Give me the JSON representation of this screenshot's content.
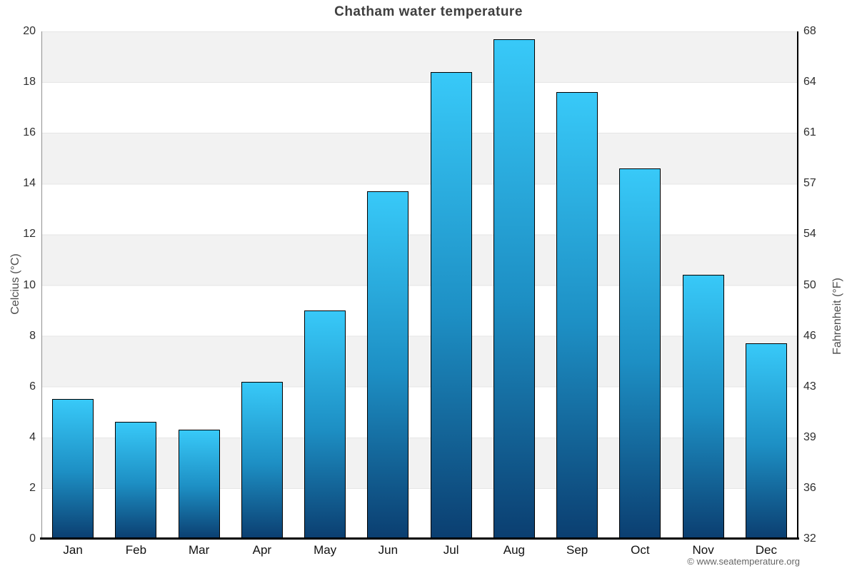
{
  "page": {
    "watermark": "© www.seatemperature.org"
  },
  "chart_data": {
    "type": "bar",
    "title": "Chatham water temperature",
    "categories": [
      "Jan",
      "Feb",
      "Mar",
      "Apr",
      "May",
      "Jun",
      "Jul",
      "Aug",
      "Sep",
      "Oct",
      "Nov",
      "Dec"
    ],
    "values": [
      5.5,
      4.6,
      4.3,
      6.2,
      9.0,
      13.7,
      18.4,
      19.7,
      17.6,
      14.6,
      10.4,
      7.7
    ],
    "unit": "°C",
    "ylabel_left": "Celcius (°C)",
    "ylabel_right": "Fahrenheit (°F)",
    "yticks_left": [
      20,
      18,
      16,
      14,
      12,
      10,
      8,
      6,
      4,
      2,
      0
    ],
    "yticks_right": [
      68,
      64,
      61,
      57,
      54,
      50,
      46,
      43,
      39,
      36,
      32
    ],
    "ylim": [
      0,
      20
    ],
    "grid": "horizontal-bands-every-2",
    "legend": "none",
    "colors": {
      "bar_gradient_top": "#38c9f8",
      "bar_gradient_mid": "#1d8fc4",
      "bar_gradient_bottom": "#0b3e70",
      "bar_border": "#000000",
      "band_gray": "#f2f2f2",
      "gridline": "#e6e6e6",
      "title_text": "#3e3e3e",
      "tick_text": "#2e2e2e",
      "axis_title_text": "#4d4d4d",
      "watermark_text": "#666666"
    }
  }
}
